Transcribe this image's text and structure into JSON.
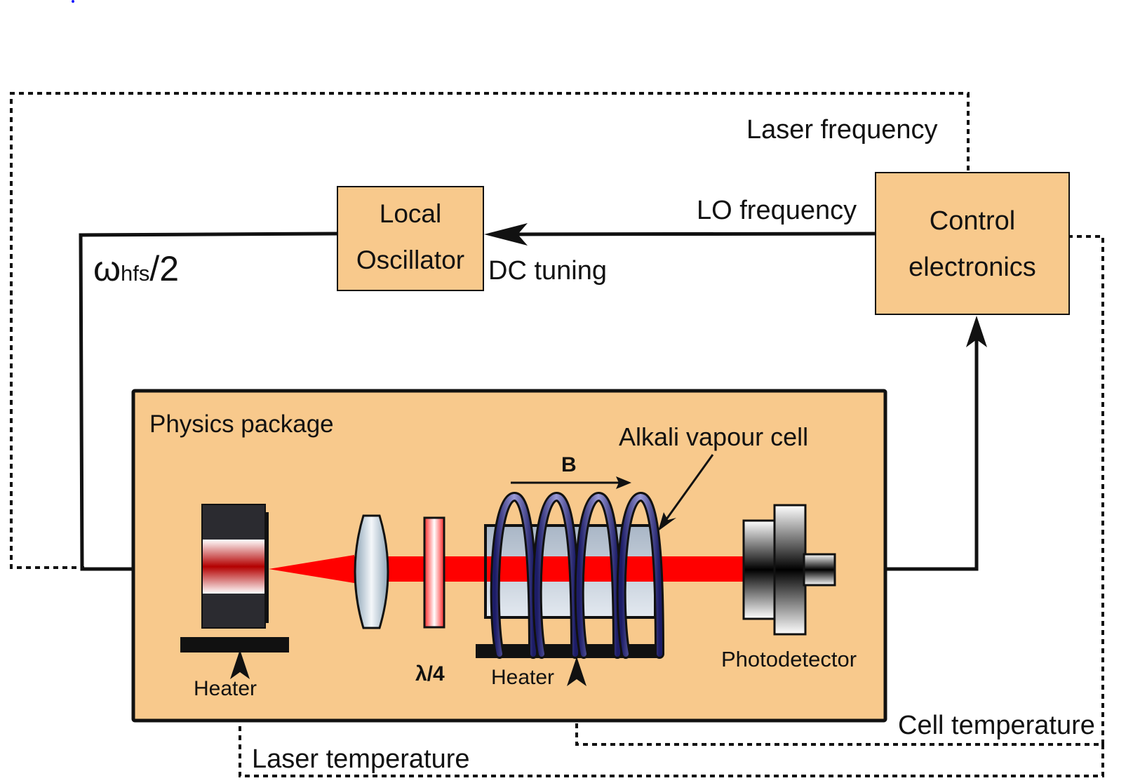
{
  "blocks": {
    "local_oscillator": {
      "line1": "Local",
      "line2": "Oscillator"
    },
    "control_electronics": {
      "line1": "Control",
      "line2": "electronics"
    },
    "physics_package": {
      "title": "Physics package"
    }
  },
  "signals": {
    "laser_frequency": "Laser frequency",
    "lo_frequency": "LO frequency",
    "dc_tuning": "DC tuning",
    "omega_symbol": "ω",
    "omega_sub": "hfs",
    "omega_tail": "/2",
    "cell_temperature": "Cell temperature",
    "laser_temperature": "Laser temperature"
  },
  "components": {
    "alkali_cell": "Alkali vapour cell",
    "b_field": "B",
    "waveplate": "λ/4",
    "heater_laser": "Heater",
    "heater_cell": "Heater",
    "photodetector": "Photodetector"
  },
  "colors": {
    "block_fill": "#F8C98C",
    "laser_beam": "#FF0000",
    "coil": "#2A2A7A",
    "cell_glass": "#C7D0DC"
  }
}
